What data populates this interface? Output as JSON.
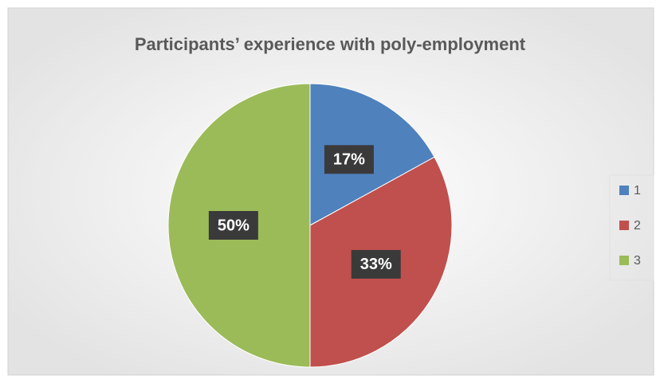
{
  "chart_data": {
    "type": "pie",
    "title": "Participants’ experience with poly-employment",
    "categories": [
      "1",
      "2",
      "3"
    ],
    "values": [
      17,
      33,
      50
    ],
    "value_labels": [
      "17%",
      "33%",
      "50%"
    ],
    "colors": [
      "#4f81bd",
      "#c0504d",
      "#9bbb59"
    ],
    "legend": "right"
  }
}
